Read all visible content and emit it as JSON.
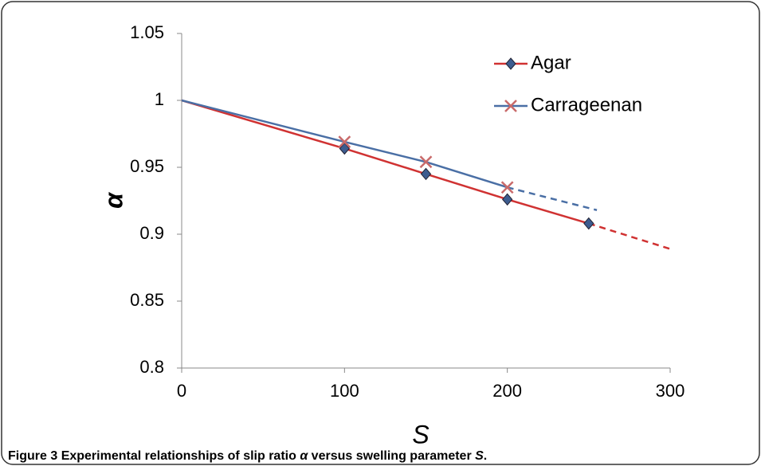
{
  "chart_data": {
    "type": "line",
    "x_label": "S",
    "y_label": "α",
    "xlim": [
      0,
      300
    ],
    "xticks": [
      0,
      100,
      200,
      300
    ],
    "ylim": [
      0.8,
      1.05
    ],
    "yticks": [
      0.8,
      0.85,
      0.9,
      0.95,
      1,
      1.05
    ],
    "grid": false,
    "legend": "upper right",
    "series": [
      {
        "name": "Agar",
        "color": "#d03232",
        "marker": "diamond",
        "marker_color": "#3d5c8f",
        "x": [
          0,
          100,
          150,
          200,
          250
        ],
        "values": [
          1,
          0.964,
          0.945,
          0.926,
          0.908
        ],
        "markers": [
          false,
          true,
          true,
          true,
          true
        ],
        "extension_x": [
          250,
          300
        ],
        "extension_values": [
          0.908,
          0.889
        ]
      },
      {
        "name": "Carrageenan",
        "color": "#4a6fa5",
        "marker": "cross",
        "marker_color": "#c96a6a",
        "x": [
          0,
          100,
          150,
          200
        ],
        "values": [
          1,
          0.969,
          0.954,
          0.935
        ],
        "markers": [
          false,
          true,
          true,
          true
        ],
        "extension_x": [
          200,
          255
        ],
        "extension_values": [
          0.935,
          0.918
        ]
      }
    ]
  },
  "caption": {
    "label": "Figure 3",
    "parts": [
      "Experimental relationships of slip ratio ",
      "α",
      " versus swelling parameter ",
      "S",
      "."
    ]
  }
}
